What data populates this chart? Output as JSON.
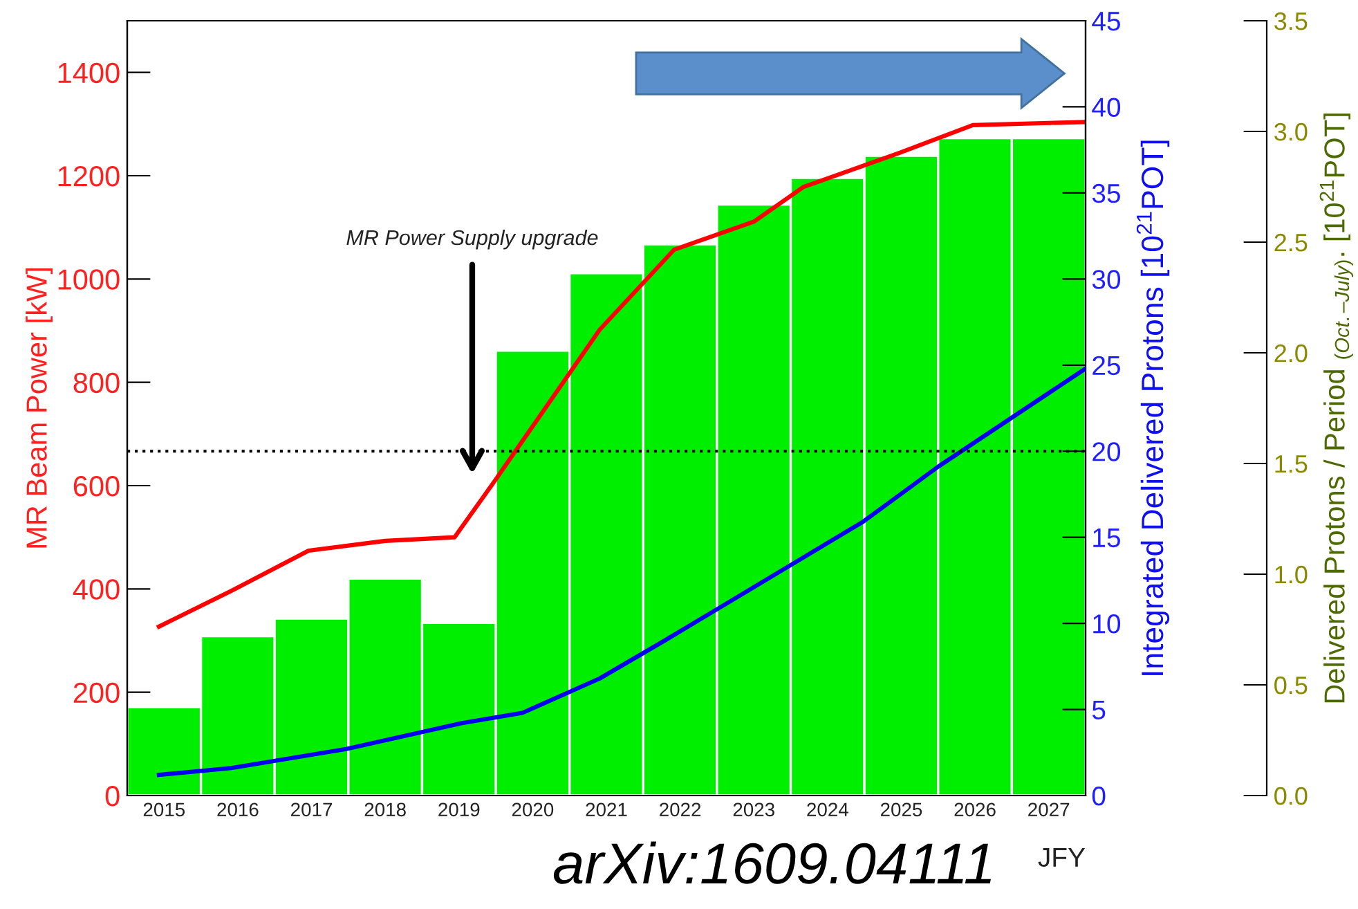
{
  "chart_data": {
    "type": "line",
    "xlabel": "JFY",
    "ylabel": "MR Beam Power [kW]",
    "y2label": "Integrated Delivered Protons [10$^{21}$POT]",
    "y3label": "Delivered Protons / Period $_{(Oct.–July)}$. [10$^{21}$POT]",
    "xlim": [
      2014.5,
      2027.5
    ],
    "xticks": [
      2015,
      2016,
      2017,
      2018,
      2019,
      2020,
      2021,
      2022,
      2023,
      2024,
      2025,
      2026,
      2027
    ],
    "ylim": [
      0,
      1500
    ],
    "yticks": [
      0,
      200,
      400,
      600,
      800,
      1000,
      1200,
      1400
    ],
    "y2lim": [
      0,
      45
    ],
    "y2ticks": [
      0,
      5,
      10,
      15,
      20,
      25,
      30,
      35,
      40,
      45
    ],
    "y3lim": [
      0,
      3.5
    ],
    "y3ticks": [
      {
        "value": 0,
        "label": "0.0"
      },
      0.5,
      {
        "value": 1,
        "label": "1.0"
      },
      1.5,
      {
        "value": 2,
        "label": "2.0"
      },
      2.5,
      {
        "value": 3,
        "label": "3.0"
      },
      3.5
    ],
    "series": [
      {
        "type": "bar",
        "axis": "y3",
        "color": "#00ee00",
        "x": [
          2015,
          2016,
          2017,
          2018,
          2019,
          2020,
          2021,
          2022,
          2023,
          2024,
          2025,
          2026,
          2027
        ],
        "values": [
          0.4,
          0.72,
          0.8,
          0.98,
          0.78,
          2.01,
          2.36,
          2.49,
          2.67,
          2.79,
          2.89,
          2.97,
          2.97
        ]
      },
      {
        "axis": "y",
        "color": "#ff0000",
        "x": [
          2014.93,
          2015.91,
          2016.96,
          2018.0,
          2018.94,
          2019.48,
          2020.91,
          2021.92,
          2023.0,
          2023.67,
          2024.99,
          2025.97,
          2027.5
        ],
        "values": [
          327,
          396,
          474,
          493,
          500,
          608,
          902,
          1057,
          1111,
          1178,
          1245,
          1298,
          1304
        ]
      },
      {
        "axis": "y2",
        "color": "#0000ee",
        "x": [
          2014.93,
          2015.91,
          2017.47,
          2019.03,
          2019.86,
          2020.91,
          2021.79,
          2024.48,
          2025.5,
          2027.5
        ],
        "values": [
          1.2,
          1.6,
          2.7,
          4.2,
          4.8,
          6.8,
          9.0,
          15.9,
          19.1,
          24.8
        ]
      }
    ],
    "ref_lines": [
      {
        "axis": "y2",
        "value": 20,
        "color": "#000000",
        "line_style": "dotted"
      }
    ],
    "annotations": [
      "MR Power Supply upgrade",
      "arXiv:1609.04111"
    ],
    "grid": false
  }
}
